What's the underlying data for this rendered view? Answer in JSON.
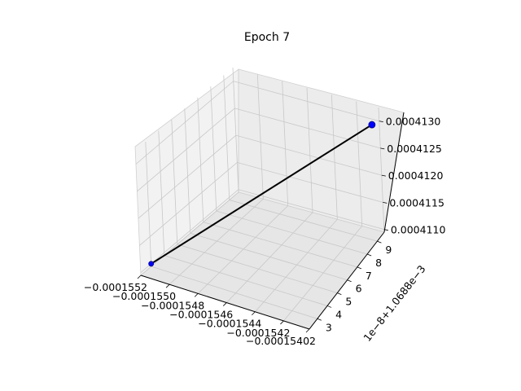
{
  "chart_data": {
    "type": "line3d",
    "title": "Epoch 7",
    "axes": {
      "x": {
        "ticks": [
          "−0.0001552",
          "−0.0001550",
          "−0.0001548",
          "−0.0001546",
          "−0.0001544",
          "−0.0001542",
          "−0.00015402"
        ],
        "range": [
          -0.0001552,
          -0.00015402
        ]
      },
      "y": {
        "ticks": [
          "3",
          "4",
          "5",
          "6",
          "7",
          "8",
          "9"
        ],
        "offset_label": "1e−8+1.0688e−3",
        "range": [
          2.2,
          9.7
        ]
      },
      "z": {
        "ticks": [
          "0.0004110",
          "0.0004115",
          "0.0004120",
          "0.0004125",
          "0.0004130"
        ],
        "range": [
          0.00041095,
          0.00041325
        ]
      }
    },
    "grid": true,
    "series": [
      {
        "color": "#0000ff",
        "line_color": "#000000",
        "points": [
          {
            "x": -0.0001552,
            "y": 3.0,
            "z": 0.000411
          },
          {
            "x": -0.00015402,
            "y": 9.0,
            "z": 0.0004131
          }
        ]
      }
    ]
  }
}
